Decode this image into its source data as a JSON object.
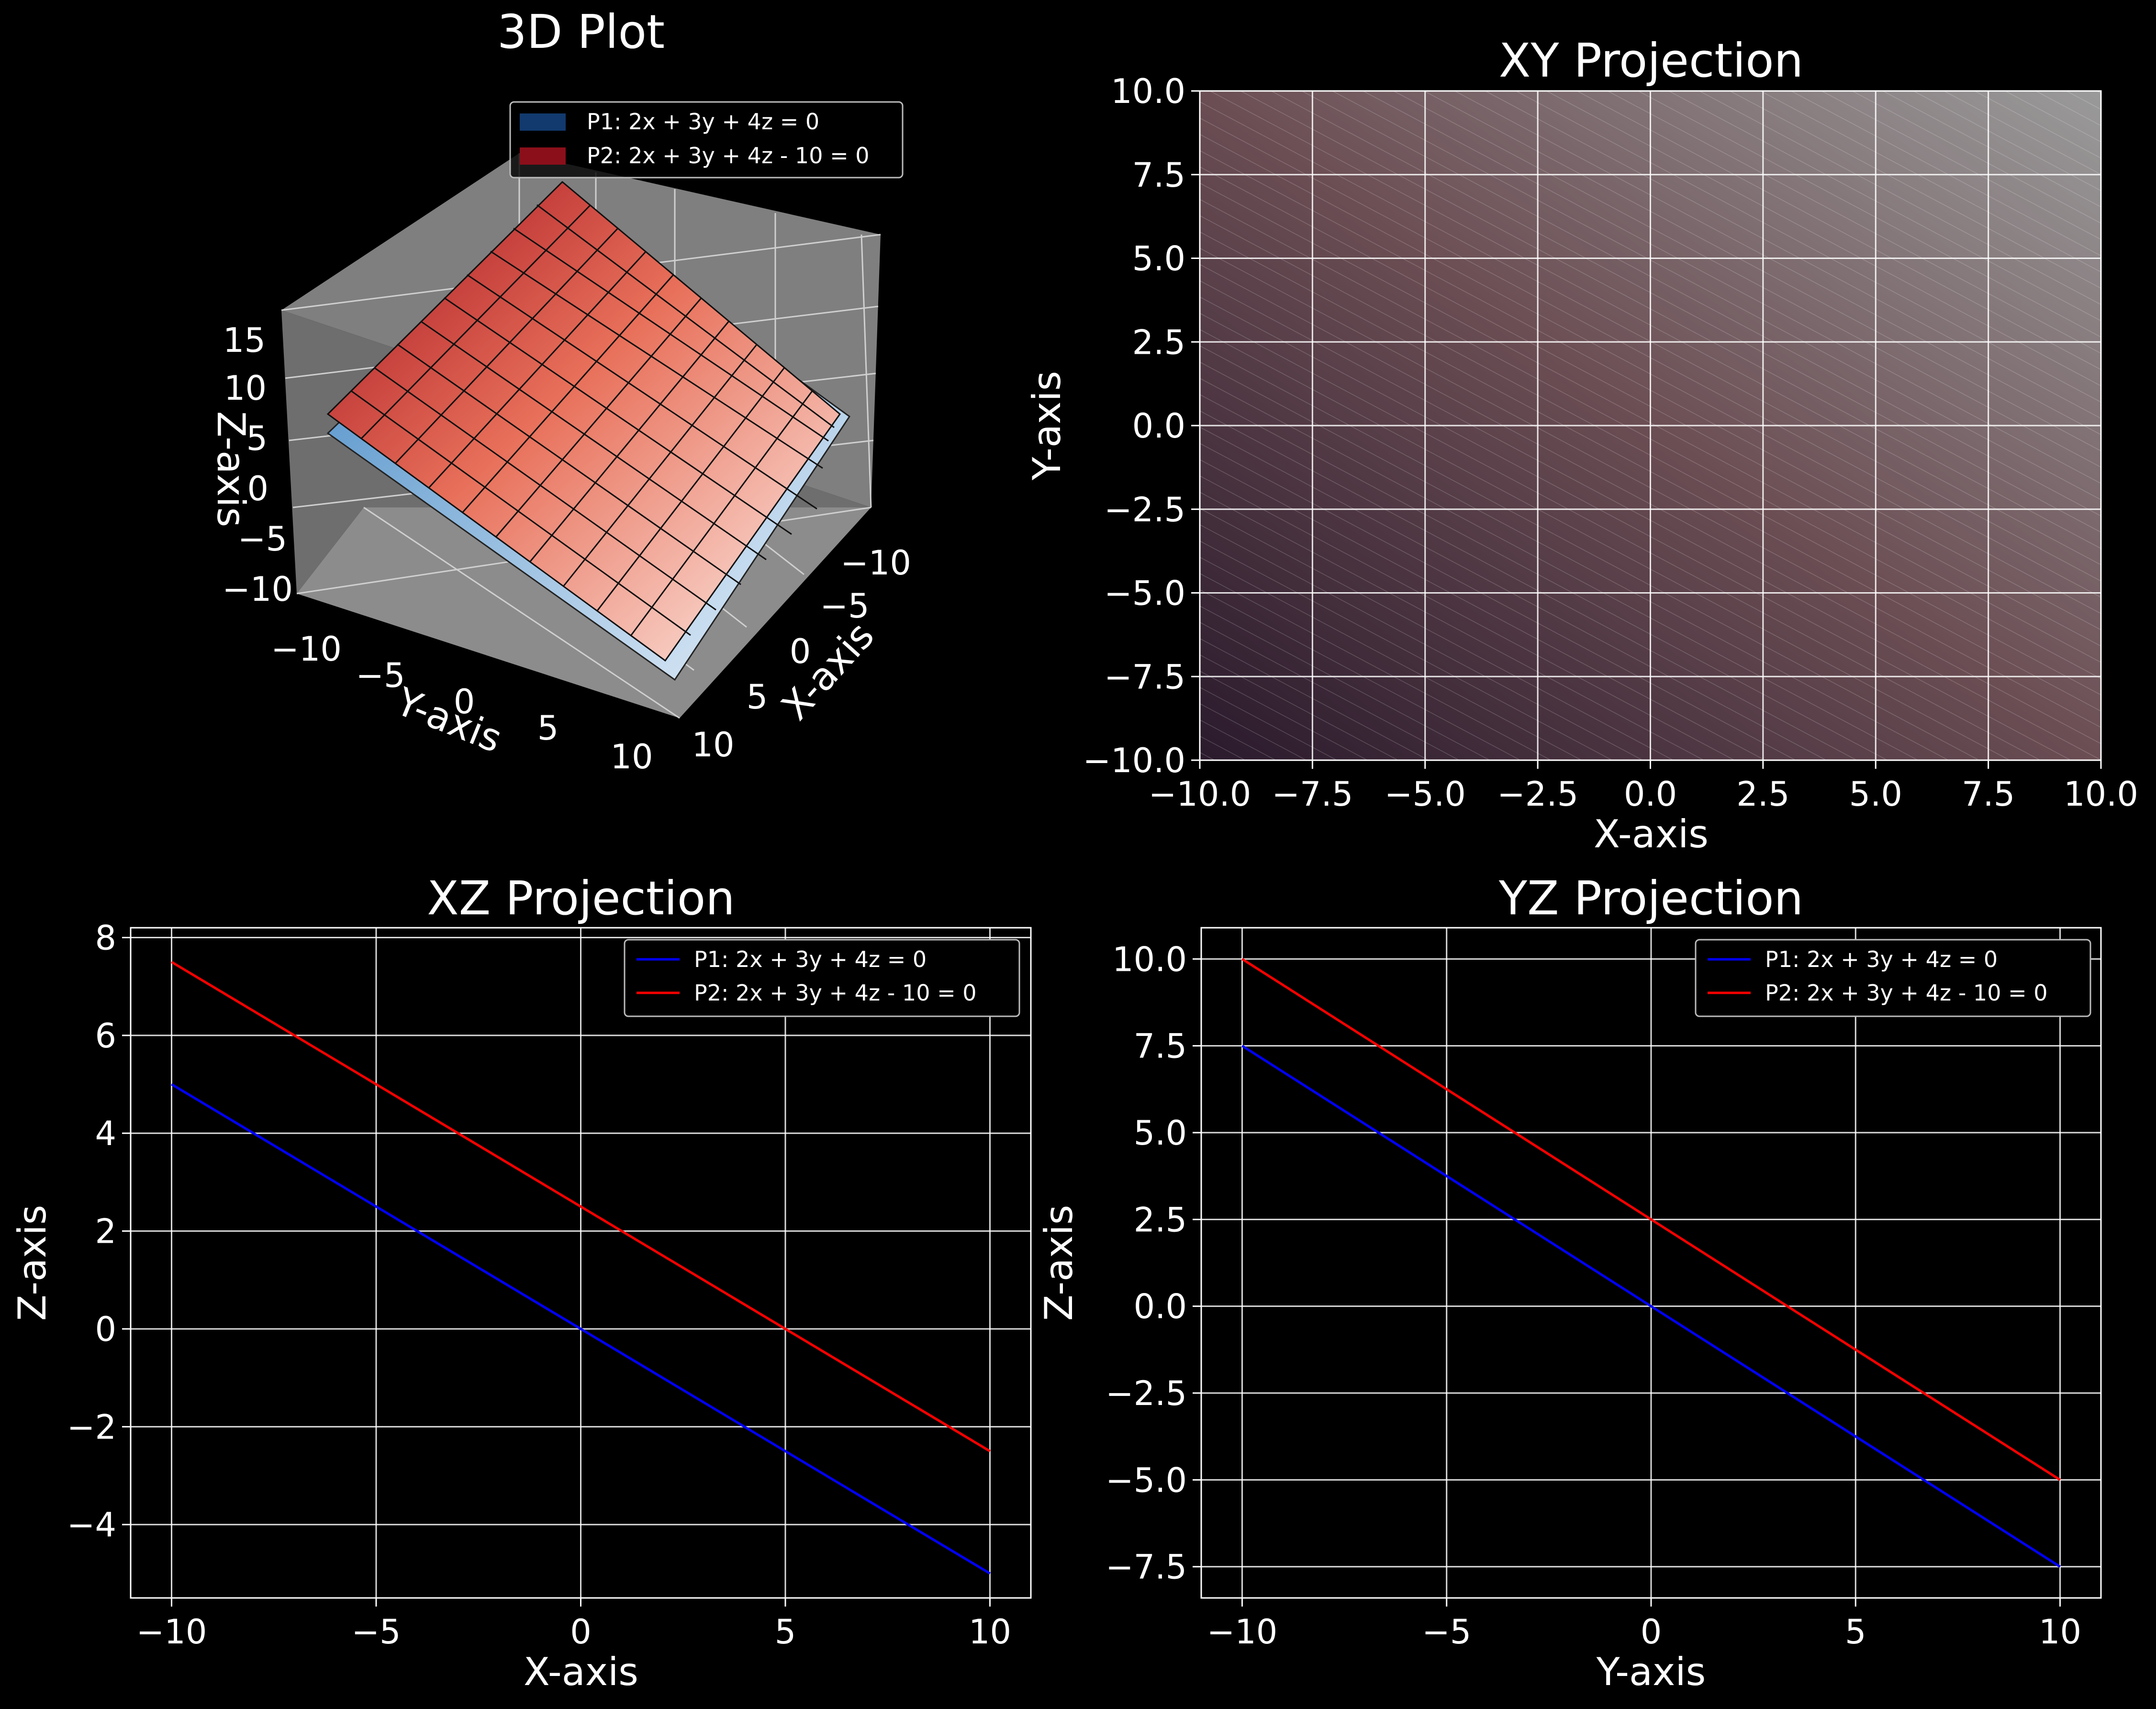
{
  "colors": {
    "background": "#000000",
    "p1": "#0000ff",
    "p2": "#ff0000",
    "grid": "#ffffff"
  },
  "legend_labels": {
    "p1": "P1: 2x + 3y + 4z = 0",
    "p2": "P2: 2x + 3y + 4z - 10 = 0"
  },
  "chart_data": [
    {
      "type": "surface3d",
      "title": "3D Plot",
      "xlabel": "X-axis",
      "ylabel": "Y-axis",
      "zlabel": "Z-axis",
      "xlim": [
        -10,
        10
      ],
      "ylim": [
        -10,
        10
      ],
      "zlim": [
        -10,
        15
      ],
      "xticks": [
        "−10",
        "−5",
        "0",
        "5",
        "10"
      ],
      "yticks": [
        "−10",
        "−5",
        "0",
        "5",
        "10"
      ],
      "zticks": [
        "−10",
        "−5",
        "0",
        "5",
        "10",
        "15"
      ],
      "grid": true,
      "legend_position": "top-right",
      "series": [
        {
          "name": "P1: 2x + 3y + 4z = 0",
          "equation": "2x + 3y + 4z = 0",
          "colormap": "Blues"
        },
        {
          "name": "P2: 2x + 3y + 4z - 10 = 0",
          "equation": "2x + 3y + 4z - 10 = 0",
          "colormap": "Reds"
        }
      ]
    },
    {
      "type": "heatmap",
      "title": "XY Projection",
      "xlabel": "X-axis",
      "ylabel": "Y-axis",
      "xlim": [
        -10,
        10
      ],
      "ylim": [
        -10,
        10
      ],
      "xticks": [
        "−10.0",
        "−7.5",
        "−5.0",
        "−2.5",
        "0.0",
        "2.5",
        "5.0",
        "7.5",
        "10.0"
      ],
      "yticks": [
        "−10.0",
        "−7.5",
        "−5.0",
        "−2.5",
        "0.0",
        "2.5",
        "5.0",
        "7.5",
        "10.0"
      ],
      "grid": true
    },
    {
      "type": "line",
      "title": "XZ Projection",
      "xlabel": "X-axis",
      "ylabel": "Z-axis",
      "xlim": [
        -11,
        11
      ],
      "ylim": [
        -5.5,
        8.2
      ],
      "xticks": [
        "−10",
        "−5",
        "0",
        "5",
        "10"
      ],
      "yticks": [
        "−4",
        "−2",
        "0",
        "2",
        "4",
        "6",
        "8"
      ],
      "grid": true,
      "legend_position": "upper-right",
      "x": [
        -10,
        10
      ],
      "series": [
        {
          "name": "P1: 2x + 3y + 4z = 0",
          "values": [
            5,
            -5
          ]
        },
        {
          "name": "P2: 2x + 3y + 4z - 10 = 0",
          "values": [
            7.5,
            -2.5
          ]
        }
      ]
    },
    {
      "type": "line",
      "title": "YZ Projection",
      "xlabel": "Y-axis",
      "ylabel": "Z-axis",
      "xlim": [
        -11,
        11
      ],
      "ylim": [
        -8.4,
        10.9
      ],
      "xticks": [
        "−10",
        "−5",
        "0",
        "5",
        "10"
      ],
      "yticks": [
        "−7.5",
        "−5.0",
        "−2.5",
        "0.0",
        "2.5",
        "5.0",
        "7.5",
        "10.0"
      ],
      "grid": true,
      "legend_position": "upper-right",
      "x": [
        -10,
        10
      ],
      "series": [
        {
          "name": "P1: 2x + 3y + 4z = 0",
          "values": [
            7.5,
            -7.5
          ]
        },
        {
          "name": "P2: 2x + 3y + 4z - 10 = 0",
          "values": [
            10,
            -5
          ]
        }
      ]
    }
  ]
}
